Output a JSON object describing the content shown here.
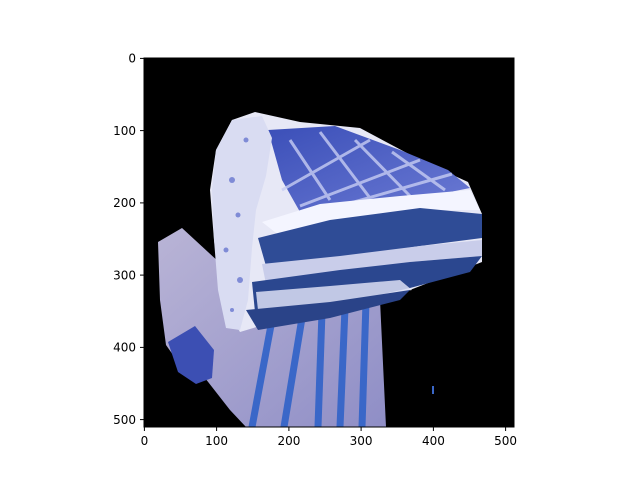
{
  "figure": {
    "image_extent": {
      "x": [
        0,
        512
      ],
      "y": [
        512,
        0
      ]
    },
    "xticks": [
      0,
      100,
      200,
      300,
      400,
      500
    ],
    "yticks": [
      0,
      100,
      200,
      300,
      400,
      500
    ],
    "background_color": "#000000",
    "frame_color": "#000000",
    "subject": "slice of layered cake with blue-tinted frosting and sponge on a plate with blue stripes"
  }
}
